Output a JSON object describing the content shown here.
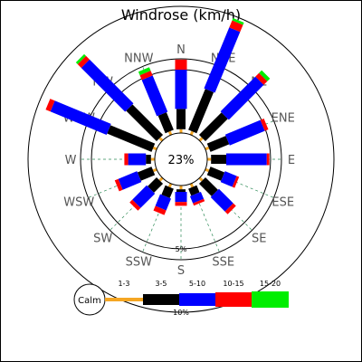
{
  "chart_data": {
    "type": "windrose",
    "title": "Windrose (km/h)",
    "directions": [
      "N",
      "NNE",
      "NE",
      "ENE",
      "E",
      "ESE",
      "SE",
      "SSE",
      "S",
      "SSW",
      "SW",
      "WSW",
      "W",
      "WNW",
      "NW",
      "NNW"
    ],
    "calm_percent": "23%",
    "calm_label": "Calm",
    "ring_labels": [
      "5%",
      "10%"
    ],
    "rings_percent": [
      5,
      10
    ],
    "speed_bins": [
      {
        "name": "1-3",
        "color": "#f5a623"
      },
      {
        "name": "3-5",
        "color": "#000000"
      },
      {
        "name": "5-10",
        "color": "#0000ff"
      },
      {
        "name": "10-15",
        "color": "#ff0000"
      },
      {
        "name": "15-20",
        "color": "#00ee00"
      }
    ],
    "series": [
      {
        "name": "1-3",
        "values": [
          0.3,
          0.3,
          0.3,
          0.3,
          0.3,
          0.3,
          0.3,
          0.3,
          0.3,
          0.3,
          0.3,
          0.3,
          0.3,
          0.3,
          0.3,
          0.3
        ]
      },
      {
        "name": "3-5",
        "values": [
          1.6,
          3.5,
          2.5,
          1.6,
          1.2,
          1.2,
          1.4,
          0.6,
          0.2,
          0.8,
          1.0,
          1.2,
          0.4,
          3.8,
          3.4,
          1.5
        ]
      },
      {
        "name": "5-10",
        "values": [
          3.1,
          5.2,
          3.9,
          3.0,
          3.2,
          1.0,
          1.6,
          0.6,
          0.8,
          1.0,
          1.6,
          1.6,
          1.4,
          4.8,
          4.9,
          3.1
        ]
      },
      {
        "name": "10-15",
        "values": [
          0.8,
          0.6,
          0.4,
          0.3,
          0.2,
          0.2,
          0.3,
          0.2,
          0.3,
          0.4,
          0.3,
          0.3,
          0.3,
          0.4,
          0.4,
          0.4
        ]
      },
      {
        "name": "15-20",
        "values": [
          0.0,
          0.2,
          0.3,
          0.0,
          0.0,
          0.0,
          0.0,
          0.0,
          0.0,
          0.0,
          0.0,
          0.0,
          0.0,
          0.0,
          0.2,
          0.3
        ]
      }
    ],
    "grid": true,
    "legend_position": "bottom"
  }
}
